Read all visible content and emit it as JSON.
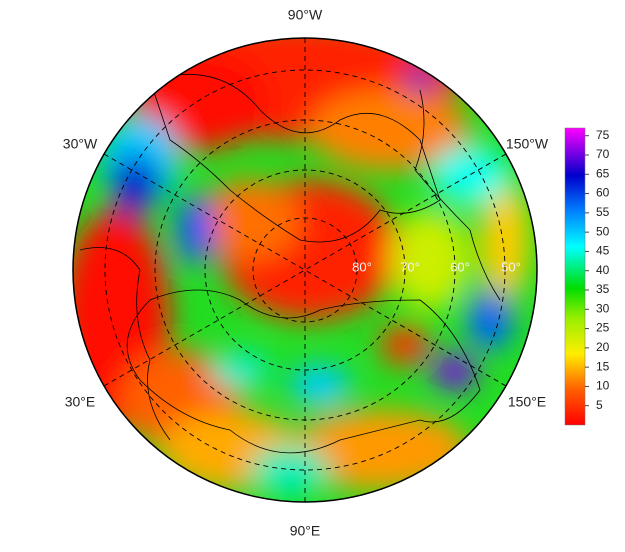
{
  "map": {
    "longitude_labels": [
      "90°W",
      "30°W",
      "150°W",
      "30°E",
      "150°E",
      "90°E"
    ],
    "latitude_labels": [
      "80°",
      "70°",
      "60°",
      "50°"
    ]
  },
  "colorbar": {
    "range": [
      0,
      77
    ],
    "ticks": [
      5,
      10,
      15,
      20,
      25,
      30,
      35,
      40,
      45,
      50,
      55,
      60,
      65,
      70,
      75
    ]
  }
}
